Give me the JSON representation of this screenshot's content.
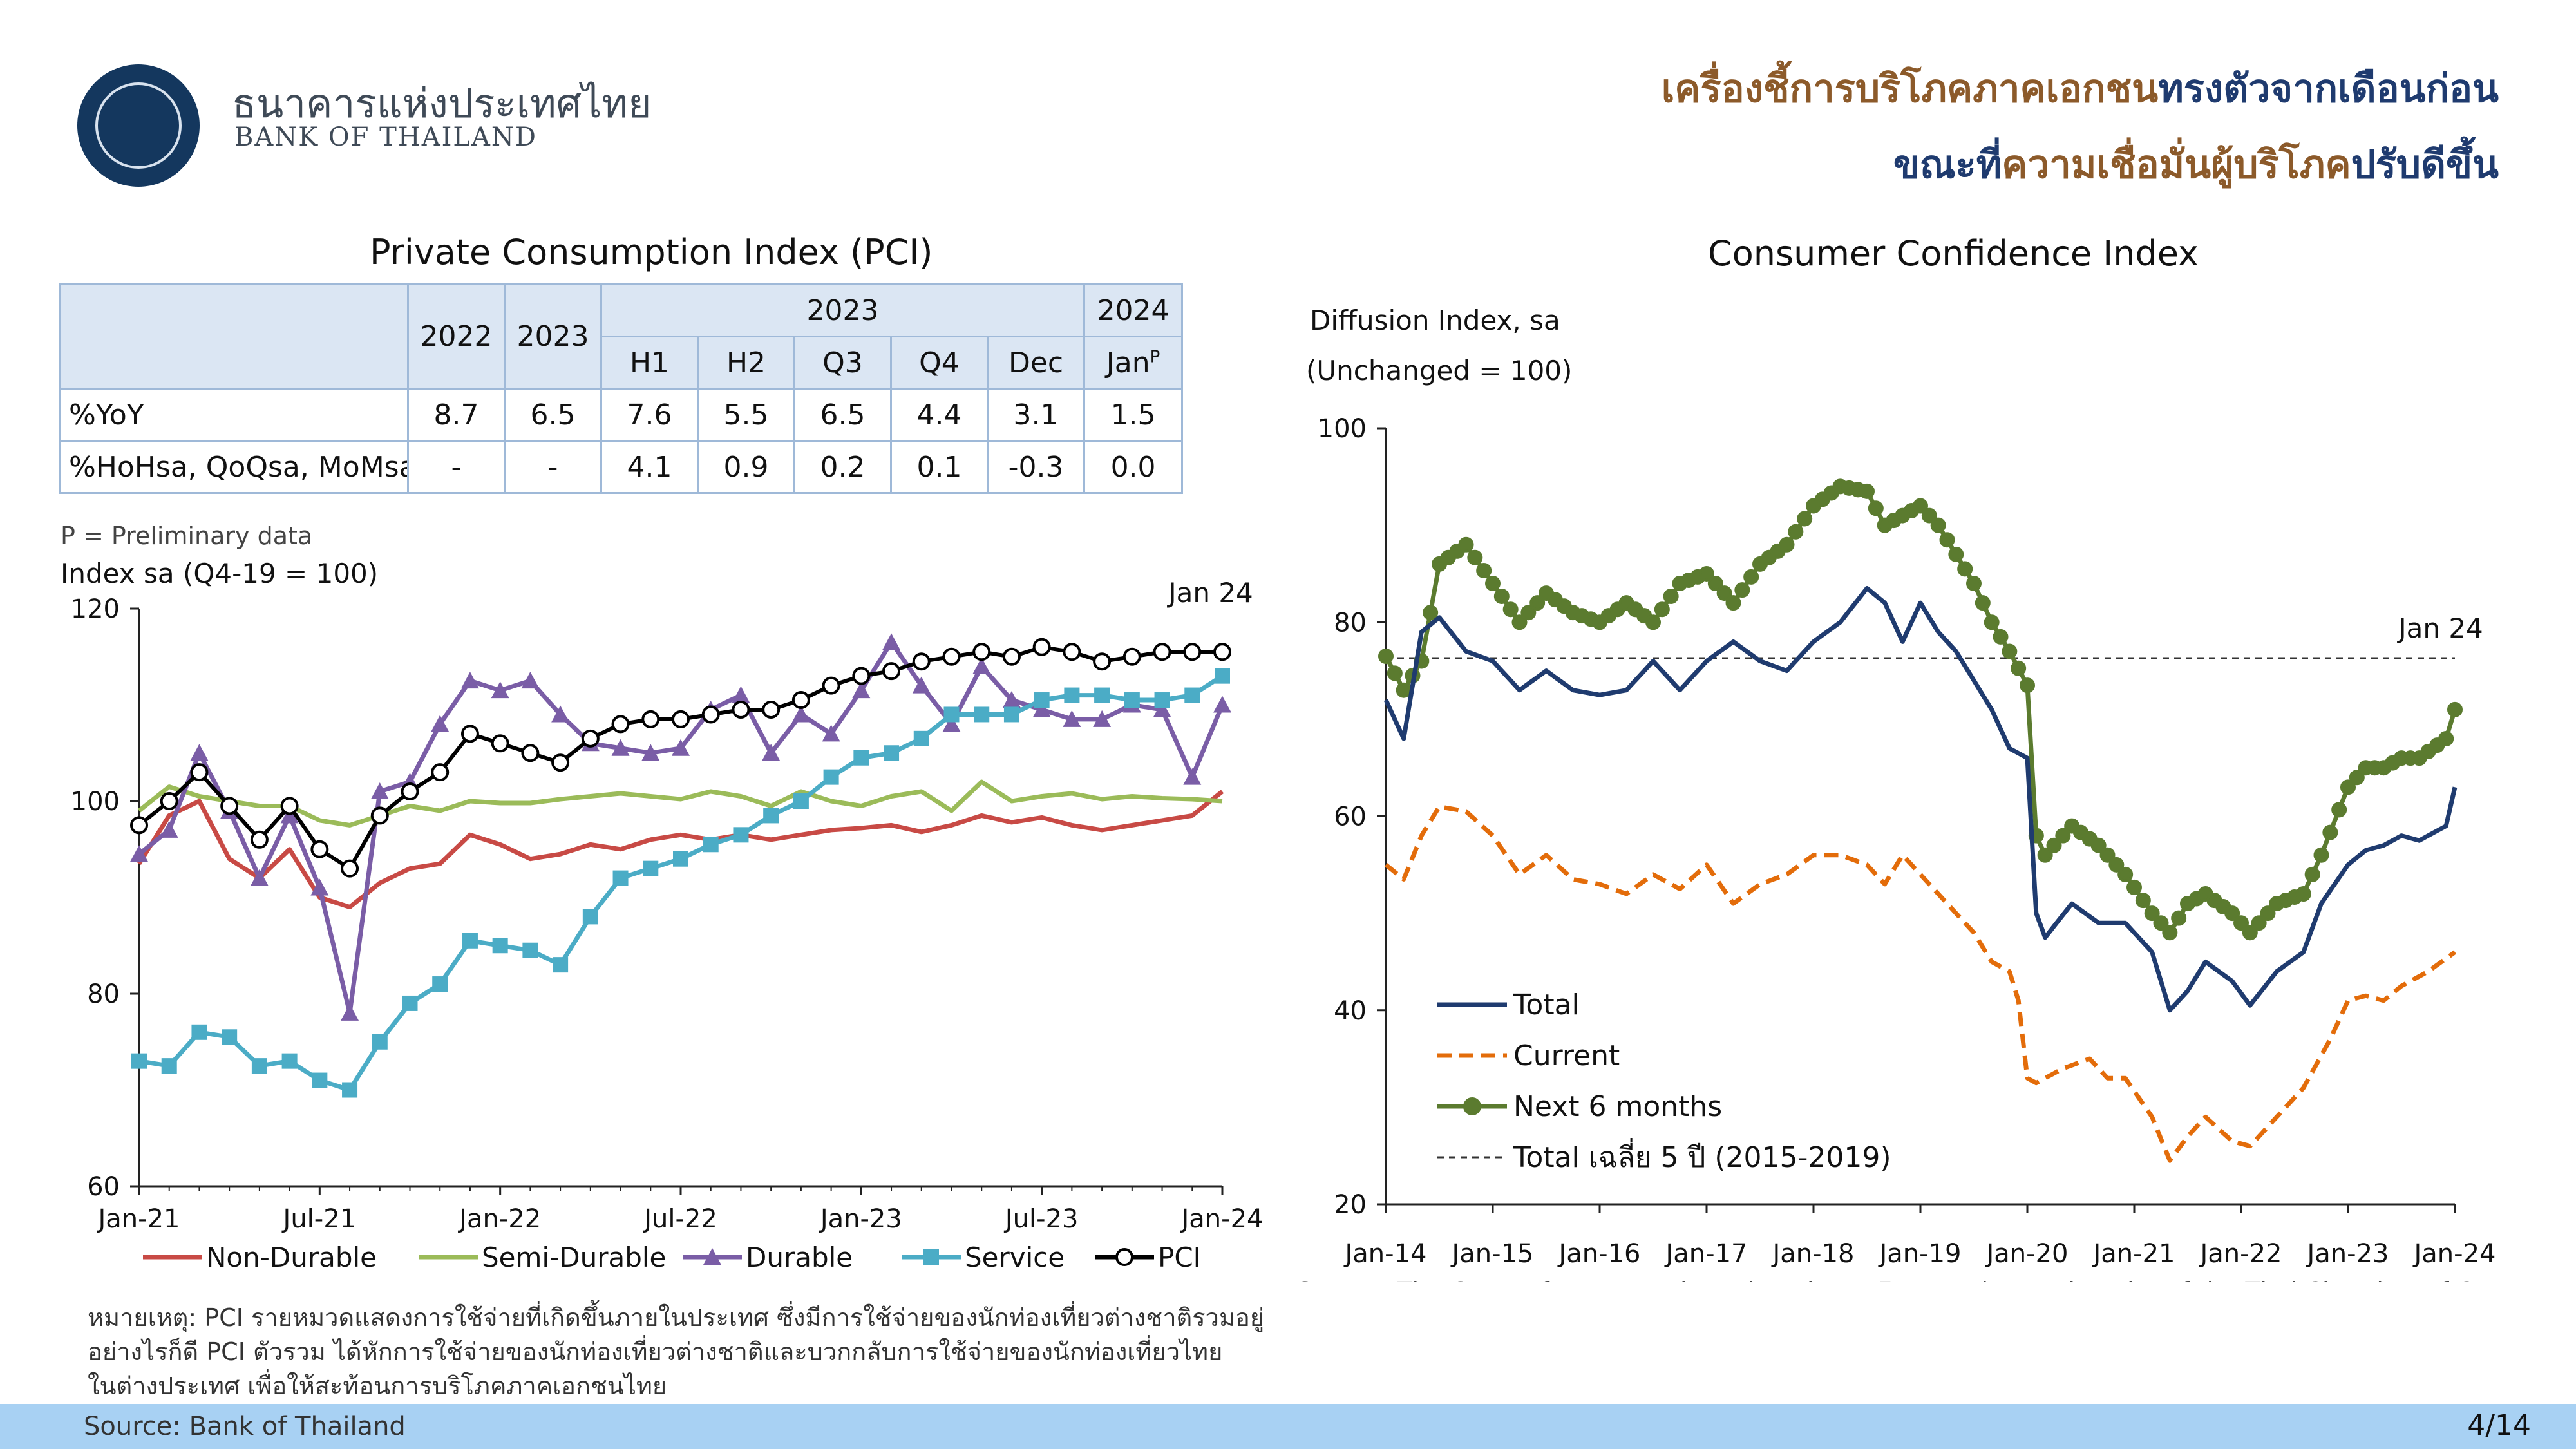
{
  "header": {
    "bank_name_th": "ธนาคารแห่งประเทศไทย",
    "bank_name_en": "BANK OF THAILAND",
    "headline_line1_a": "เครื่องชี้การบริโภคภาคเอกชน",
    "headline_line1_b": "ทรงตัวจากเดือนก่อน",
    "headline_line2_a": "ขณะที่",
    "headline_line2_b": "ความเชื่อมั่นผู้บริโภค",
    "headline_line2_c": "ปรับดีขึ้น",
    "colors": {
      "brown": "#8c5a2a",
      "navy": "#1f3b6f"
    }
  },
  "pci_table": {
    "title": "Private Consumption Index (PCI)",
    "top_headers": [
      "2022",
      "2023",
      "2023",
      "2024"
    ],
    "sub_headers": [
      "H1",
      "H2",
      "Q3",
      "Q4",
      "Dec",
      "Jan"
    ],
    "jan_superscript": "P",
    "rows": [
      {
        "label": "%YoY",
        "values": [
          "8.7",
          "6.5",
          "7.6",
          "5.5",
          "6.5",
          "4.4",
          "3.1",
          "1.5"
        ]
      },
      {
        "label": "%HoHsa, QoQsa, MoMsa",
        "values": [
          "-",
          "-",
          "4.1",
          "0.9",
          "0.2",
          "0.1",
          "-0.3",
          "0.0"
        ]
      }
    ],
    "footnote": "P = Preliminary data"
  },
  "chart_data": [
    {
      "type": "line",
      "ylabel": "Index sa (Q4-19 = 100)",
      "ylim": [
        60,
        120
      ],
      "yticks": [
        "60",
        "80",
        "100",
        "120"
      ],
      "xticks": [
        "Jan-21",
        "Jul-21",
        "Jan-22",
        "Jul-22",
        "Jan-23",
        "Jul-23",
        "Jan-24"
      ],
      "annotation": "Jan 24",
      "x_start": "2021-01",
      "series": [
        {
          "name": "Non-Durable",
          "color": "#c84a45",
          "marker": "none",
          "values": [
            93.5,
            98.5,
            100.0,
            94.0,
            92.0,
            95.0,
            90.0,
            89.0,
            91.5,
            93.0,
            93.5,
            96.5,
            95.5,
            94.0,
            94.5,
            95.5,
            95.0,
            96.0,
            96.5,
            96.0,
            96.5,
            96.0,
            96.5,
            97.0,
            97.2,
            97.5,
            96.8,
            97.5,
            98.5,
            97.8,
            98.3,
            97.5,
            97.0,
            97.5,
            98.0,
            98.5,
            101.0
          ]
        },
        {
          "name": "Semi-Durable",
          "color": "#9bbb59",
          "marker": "none",
          "values": [
            99.0,
            101.5,
            100.5,
            100.0,
            99.5,
            99.5,
            98.0,
            97.5,
            98.5,
            99.5,
            99.0,
            100.0,
            99.8,
            99.8,
            100.2,
            100.5,
            100.8,
            100.5,
            100.2,
            101.0,
            100.5,
            99.5,
            101.0,
            100.0,
            99.5,
            100.5,
            101.0,
            99.0,
            102.0,
            100.0,
            100.5,
            100.8,
            100.2,
            100.5,
            100.3,
            100.2,
            100.0
          ]
        },
        {
          "name": "Durable",
          "color": "#7a5da6",
          "marker": "triangle",
          "values": [
            94.5,
            97.0,
            105.0,
            99.0,
            92.0,
            98.5,
            91.0,
            78.0,
            101.0,
            102.0,
            108.0,
            112.5,
            111.5,
            112.5,
            109.0,
            106.0,
            105.5,
            105.0,
            105.5,
            109.5,
            111.0,
            105.0,
            109.0,
            107.0,
            111.5,
            116.5,
            112.0,
            108.0,
            114.0,
            110.5,
            109.5,
            108.5,
            108.5,
            110.0,
            109.5,
            102.5,
            110.0
          ]
        },
        {
          "name": "Service",
          "color": "#4bacc6",
          "marker": "square",
          "values": [
            73.0,
            72.5,
            76.0,
            75.5,
            72.5,
            73.0,
            71.0,
            70.0,
            75.0,
            79.0,
            81.0,
            85.5,
            85.0,
            84.5,
            83.0,
            88.0,
            92.0,
            93.0,
            94.0,
            95.5,
            96.5,
            98.5,
            100.0,
            102.5,
            104.5,
            105.0,
            106.5,
            109.0,
            109.0,
            109.0,
            110.5,
            111.0,
            111.0,
            110.5,
            110.5,
            111.0,
            113.0
          ]
        },
        {
          "name": "PCI",
          "color": "#000000",
          "marker": "circle",
          "values": [
            97.5,
            100.0,
            103.0,
            99.5,
            96.0,
            99.5,
            95.0,
            93.0,
            98.5,
            101.0,
            103.0,
            107.0,
            106.0,
            105.0,
            104.0,
            106.5,
            108.0,
            108.5,
            108.5,
            109.0,
            109.5,
            109.5,
            110.5,
            112.0,
            113.0,
            113.5,
            114.5,
            115.0,
            115.5,
            115.0,
            116.0,
            115.5,
            114.5,
            115.0,
            115.5,
            115.5,
            115.5
          ]
        }
      ]
    },
    {
      "type": "line",
      "title": "Consumer Confidence Index",
      "ylabel_line1": "Diffusion Index, sa",
      "ylabel_line2": "(Unchanged = 100)",
      "ylim": [
        20,
        100
      ],
      "yticks": [
        "20",
        "40",
        "60",
        "80",
        "100"
      ],
      "xticks": [
        "Jan-14",
        "Jan-15",
        "Jan-16",
        "Jan-17",
        "Jan-18",
        "Jan-19",
        "Jan-20",
        "Jan-21",
        "Jan-22",
        "Jan-23",
        "Jan-24"
      ],
      "annotation": "Jan 24",
      "reference_line": {
        "name": "Total เฉลี่ย 5 ปี (2015-2019)",
        "value": 76.3
      },
      "source": "Source: The Center for Economic and Business Forecasting, University of the Thai Chamber of Commerce",
      "series": [
        {
          "name": "Total",
          "color": "#1f3b6f",
          "marker": "none",
          "anchors": [
            [
              0,
              72
            ],
            [
              2,
              68
            ],
            [
              4,
              79
            ],
            [
              6,
              80.5
            ],
            [
              9,
              77
            ],
            [
              12,
              76
            ],
            [
              15,
              73
            ],
            [
              18,
              75
            ],
            [
              21,
              73
            ],
            [
              24,
              72.5
            ],
            [
              27,
              73
            ],
            [
              30,
              76
            ],
            [
              33,
              73
            ],
            [
              36,
              76
            ],
            [
              39,
              78
            ],
            [
              42,
              76
            ],
            [
              45,
              75
            ],
            [
              48,
              78
            ],
            [
              51,
              80
            ],
            [
              54,
              83.5
            ],
            [
              56,
              82
            ],
            [
              58,
              78
            ],
            [
              60,
              82
            ],
            [
              62,
              79
            ],
            [
              64,
              77
            ],
            [
              66,
              74
            ],
            [
              68,
              71
            ],
            [
              70,
              67
            ],
            [
              72,
              66
            ],
            [
              73,
              50
            ],
            [
              74,
              47.5
            ],
            [
              77,
              51
            ],
            [
              80,
              49
            ],
            [
              83,
              49
            ],
            [
              86,
              46
            ],
            [
              88,
              40
            ],
            [
              90,
              42
            ],
            [
              92,
              45
            ],
            [
              95,
              43
            ],
            [
              97,
              40.5
            ],
            [
              100,
              44
            ],
            [
              103,
              46
            ],
            [
              105,
              51
            ],
            [
              108,
              55
            ],
            [
              110,
              56.5
            ],
            [
              112,
              57
            ],
            [
              114,
              58
            ],
            [
              116,
              57.5
            ],
            [
              119,
              59
            ],
            [
              120,
              63
            ]
          ]
        },
        {
          "name": "Current",
          "color": "#e36c0a",
          "marker": "none",
          "dashed": true,
          "anchors": [
            [
              0,
              55
            ],
            [
              2,
              53.5
            ],
            [
              4,
              58
            ],
            [
              6,
              61
            ],
            [
              9,
              60.5
            ],
            [
              12,
              58
            ],
            [
              15,
              54
            ],
            [
              18,
              56
            ],
            [
              21,
              53.5
            ],
            [
              24,
              53
            ],
            [
              27,
              52
            ],
            [
              30,
              54
            ],
            [
              33,
              52.5
            ],
            [
              36,
              55
            ],
            [
              39,
              51
            ],
            [
              42,
              53
            ],
            [
              45,
              54
            ],
            [
              48,
              56
            ],
            [
              51,
              56
            ],
            [
              54,
              55
            ],
            [
              56,
              53
            ],
            [
              58,
              56
            ],
            [
              60,
              54
            ],
            [
              62,
              52
            ],
            [
              64,
              50
            ],
            [
              66,
              48
            ],
            [
              68,
              45
            ],
            [
              70,
              44
            ],
            [
              71,
              41
            ],
            [
              72,
              33
            ],
            [
              73,
              32.5
            ],
            [
              76,
              34
            ],
            [
              79,
              35
            ],
            [
              81,
              33
            ],
            [
              83,
              33
            ],
            [
              86,
              29
            ],
            [
              88,
              24.5
            ],
            [
              90,
              27
            ],
            [
              92,
              29
            ],
            [
              95,
              26.5
            ],
            [
              97,
              26
            ],
            [
              100,
              29
            ],
            [
              103,
              32
            ],
            [
              106,
              37
            ],
            [
              108,
              41
            ],
            [
              110,
              41.5
            ],
            [
              112,
              41
            ],
            [
              114,
              42.5
            ],
            [
              117,
              44
            ],
            [
              120,
              46
            ]
          ]
        },
        {
          "name": "Next 6 months",
          "color": "#5b7b2f",
          "marker": "circle",
          "anchors": [
            [
              0,
              76.5
            ],
            [
              2,
              73
            ],
            [
              4,
              76
            ],
            [
              6,
              86
            ],
            [
              9,
              88
            ],
            [
              12,
              84
            ],
            [
              15,
              80
            ],
            [
              18,
              83
            ],
            [
              21,
              81
            ],
            [
              24,
              80
            ],
            [
              27,
              82
            ],
            [
              30,
              80
            ],
            [
              33,
              84
            ],
            [
              36,
              85
            ],
            [
              39,
              82
            ],
            [
              42,
              86
            ],
            [
              45,
              88
            ],
            [
              48,
              92
            ],
            [
              51,
              94
            ],
            [
              54,
              93.5
            ],
            [
              56,
              90
            ],
            [
              58,
              91
            ],
            [
              60,
              92
            ],
            [
              62,
              90
            ],
            [
              64,
              87
            ],
            [
              66,
              84
            ],
            [
              68,
              80
            ],
            [
              70,
              77
            ],
            [
              72,
              73.5
            ],
            [
              73,
              58
            ],
            [
              74,
              56
            ],
            [
              77,
              59
            ],
            [
              80,
              57
            ],
            [
              83,
              54
            ],
            [
              86,
              50
            ],
            [
              88,
              48
            ],
            [
              90,
              51
            ],
            [
              92,
              52
            ],
            [
              95,
              50
            ],
            [
              97,
              48
            ],
            [
              100,
              51
            ],
            [
              103,
              52
            ],
            [
              105,
              56
            ],
            [
              108,
              63
            ],
            [
              110,
              65
            ],
            [
              112,
              65
            ],
            [
              114,
              66
            ],
            [
              116,
              66
            ],
            [
              119,
              68
            ],
            [
              120,
              71
            ]
          ]
        }
      ]
    }
  ],
  "pci_legend": [
    "Non-Durable",
    "Semi-Durable",
    "Durable",
    "Service",
    "PCI"
  ],
  "pci_note": {
    "line1": "หมายเหตุ: PCI รายหมวดแสดงการใช้จ่ายที่เกิดขึ้นภายในประเทศ ซึ่งมีการใช้จ่ายของนักท่องเที่ยวต่างชาติรวมอยู่",
    "line2": "อย่างไรก็ดี PCI ตัวรวม ได้หักการใช้จ่ายของนักท่องเที่ยวต่างชาติและบวกกลับการใช้จ่ายของนักท่องเที่ยวไทย",
    "line3": "ในต่างประเทศ เพื่อให้สะท้อนการบริโภคภาคเอกชนไทย"
  },
  "footer": {
    "source": "Source: Bank of Thailand",
    "page": "4/14"
  }
}
